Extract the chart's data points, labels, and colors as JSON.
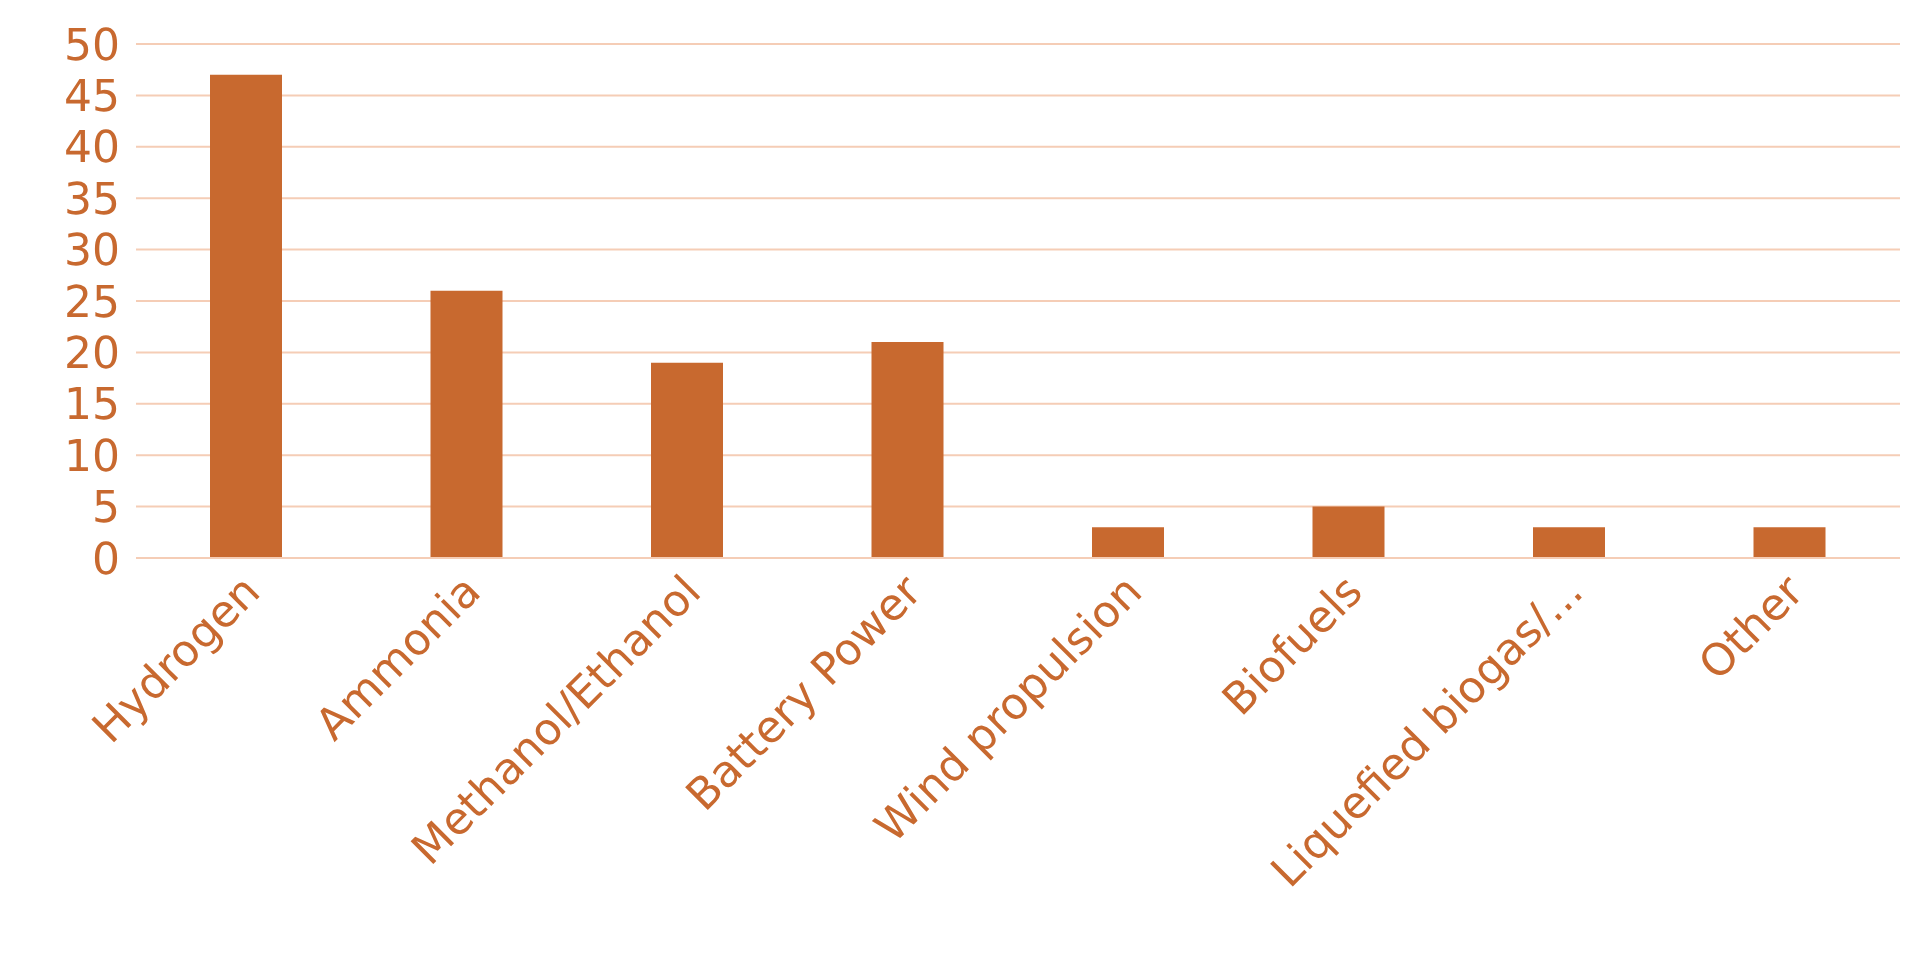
{
  "chart_data": {
    "type": "bar",
    "categories": [
      "Hydrogen",
      "Ammonia",
      "Methanol/Ethanol",
      "Battery Power",
      "Wind propulsion",
      "Biofuels",
      "Liquefied biogas/...",
      "Other"
    ],
    "values": [
      47,
      26,
      19,
      21,
      3,
      5,
      3,
      3
    ],
    "color": "#c8692f",
    "ylim": [
      0,
      50
    ],
    "yticks": [
      0,
      5,
      10,
      15,
      20,
      25,
      30,
      35,
      40,
      45,
      50
    ],
    "grid": "y"
  }
}
